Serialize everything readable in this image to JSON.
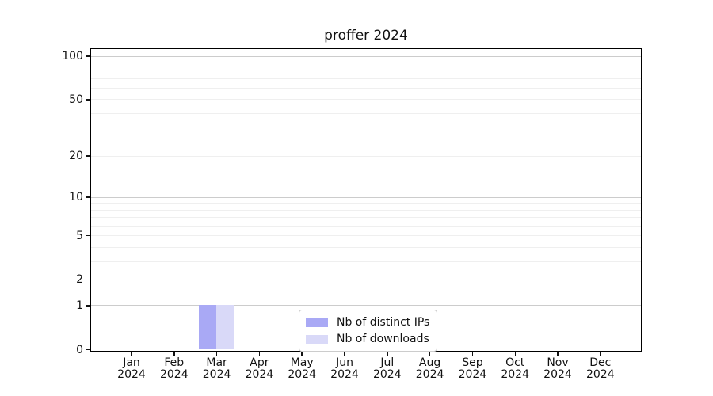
{
  "title": "proffer 2024",
  "legend": {
    "items": [
      {
        "label": "Nb of distinct IPs",
        "color": "#a9a9f5"
      },
      {
        "label": "Nb of downloads",
        "color": "#d9d9f8"
      }
    ]
  },
  "chart_data": {
    "type": "bar",
    "title": "proffer 2024",
    "categories": [
      "Jan 2024",
      "Feb 2024",
      "Mar 2024",
      "Apr 2024",
      "May 2024",
      "Jun 2024",
      "Jul 2024",
      "Aug 2024",
      "Sep 2024",
      "Oct 2024",
      "Nov 2024",
      "Dec 2024"
    ],
    "x_tick_line1": [
      "Jan",
      "Feb",
      "Mar",
      "Apr",
      "May",
      "Jun",
      "Jul",
      "Aug",
      "Sep",
      "Oct",
      "Nov",
      "Dec"
    ],
    "x_tick_line2": [
      "2024",
      "2024",
      "2024",
      "2024",
      "2024",
      "2024",
      "2024",
      "2024",
      "2024",
      "2024",
      "2024",
      "2024"
    ],
    "series": [
      {
        "name": "Nb of distinct IPs",
        "color": "#a9a9f5",
        "values": [
          0,
          0,
          1,
          0,
          0,
          0,
          0,
          0,
          0,
          0,
          0,
          0
        ]
      },
      {
        "name": "Nb of downloads",
        "color": "#d9d9f8",
        "values": [
          0,
          0,
          1,
          0,
          0,
          0,
          0,
          0,
          0,
          0,
          0,
          0
        ]
      }
    ],
    "xlabel": "",
    "ylabel": "",
    "y_scale": "log1p",
    "ylim": [
      0,
      110
    ],
    "y_tick_labels": [
      0,
      1,
      2,
      5,
      10,
      20,
      50,
      100
    ],
    "y_major_gridlines": [
      1,
      10,
      100
    ],
    "y_minor_gridlines": [
      2,
      3,
      4,
      5,
      6,
      7,
      8,
      9,
      20,
      30,
      40,
      50,
      60,
      70,
      80,
      90
    ],
    "grid": "on",
    "legend_position": "lower-center-inside",
    "colors": {
      "major_grid": "#cccccc",
      "minor_grid": "#efefef",
      "axis": "#000000",
      "text": "#111111"
    }
  }
}
